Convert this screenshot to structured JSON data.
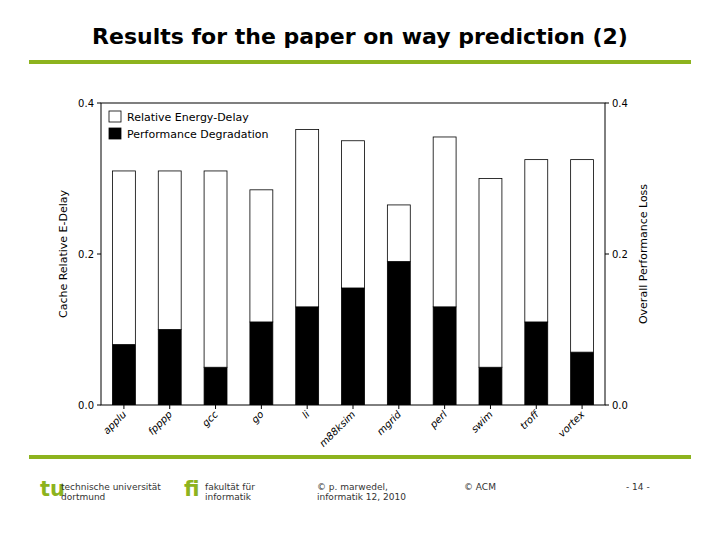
{
  "chart_data": {
    "type": "bar",
    "title": "Results for the paper on way prediction (2)",
    "categories": [
      "applu",
      "fpppp",
      "gcc",
      "go",
      "li",
      "m88ksim",
      "mgrid",
      "perl",
      "swim",
      "troff",
      "vortex"
    ],
    "series": [
      {
        "name": "Performance Degradation",
        "color": "#000000",
        "values": [
          0.08,
          0.1,
          0.05,
          0.11,
          0.13,
          0.155,
          0.19,
          0.13,
          0.05,
          0.11,
          0.07
        ]
      },
      {
        "name": "Relative Energy-Delay",
        "color": "#ffffff",
        "values": [
          0.23,
          0.21,
          0.26,
          0.175,
          0.235,
          0.195,
          0.075,
          0.225,
          0.25,
          0.215,
          0.255
        ]
      }
    ],
    "stacked": true,
    "ylabel": "Cache Relative E-Delay",
    "y2label": "Overall Performance Loss",
    "ylim": [
      0.0,
      0.4
    ],
    "yticks": [
      {
        "value": 0.0,
        "label": "0.0"
      },
      0.2,
      0.4
    ],
    "y2lim": [
      0.0,
      0.4
    ],
    "y2ticks": [
      {
        "value": 0.0,
        "label": "0.0"
      },
      0.2,
      0.4
    ],
    "grid": false,
    "legend": "upper left",
    "annotations": [
      {
        "text": "tu",
        "color": "#8db31e"
      },
      {
        "text": "technische universität"
      },
      {
        "text": "dortmund"
      },
      {
        "text": "fi",
        "color": "#8db31e"
      },
      {
        "text": "fakultät für"
      },
      {
        "text": "informatik"
      },
      {
        "text": "© p. marwedel,"
      },
      {
        "text": "informatik 12,  2010"
      },
      {
        "text": "© ACM"
      },
      {
        "text": "- 14 -"
      }
    ]
  }
}
